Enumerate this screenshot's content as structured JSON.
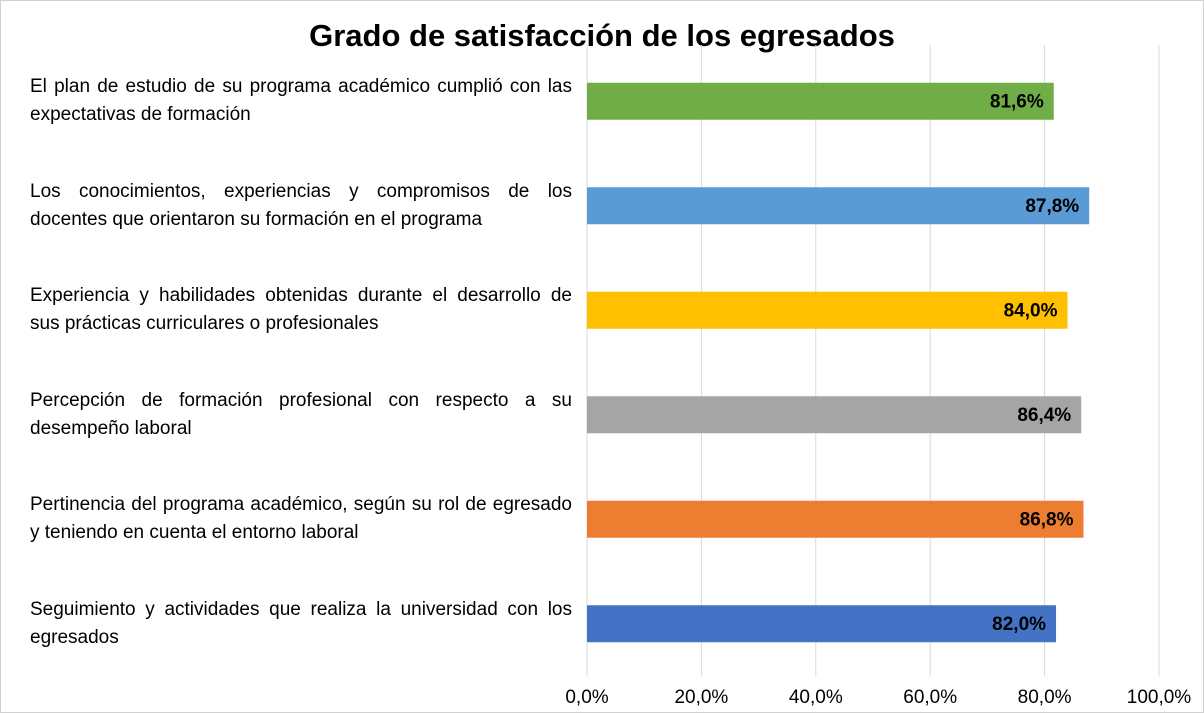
{
  "chart_data": {
    "type": "barh",
    "title": "Grado de satisfacción de los egresados",
    "categories": [
      "El plan de estudio de su programa académico cumplió con las expectativas de formación",
      "Los conocimientos, experiencias y compromisos de los docentes que orientaron su formación en el programa",
      "Experiencia y habilidades obtenidas durante el desarrollo de sus prácticas curriculares o profesionales",
      "Percepción de formación profesional con respecto a su desempeño laboral",
      "Pertinencia del programa académico, según su rol de egresado y teniendo en cuenta el entorno laboral",
      "Seguimiento y actividades que realiza la universidad con los egresados"
    ],
    "values": [
      81.6,
      87.8,
      84.0,
      86.4,
      86.8,
      82.0
    ],
    "value_labels": [
      "81,6%",
      "87,8%",
      "84,0%",
      "86,4%",
      "86,8%",
      "82,0%"
    ],
    "colors": [
      "#70ad47",
      "#5b9bd5",
      "#ffc000",
      "#a5a5a5",
      "#ed7d31",
      "#4472c4"
    ],
    "xlim": [
      0,
      100
    ],
    "xticks": [
      {
        "value": 0,
        "label": "0,0%"
      },
      {
        "value": 20,
        "label": "20,0%"
      },
      {
        "value": 40,
        "label": "40,0%"
      },
      {
        "value": 60,
        "label": "60,0%"
      },
      {
        "value": 80,
        "label": "80,0%"
      },
      {
        "value": 100,
        "label": "100,0%"
      }
    ],
    "grid": true
  }
}
